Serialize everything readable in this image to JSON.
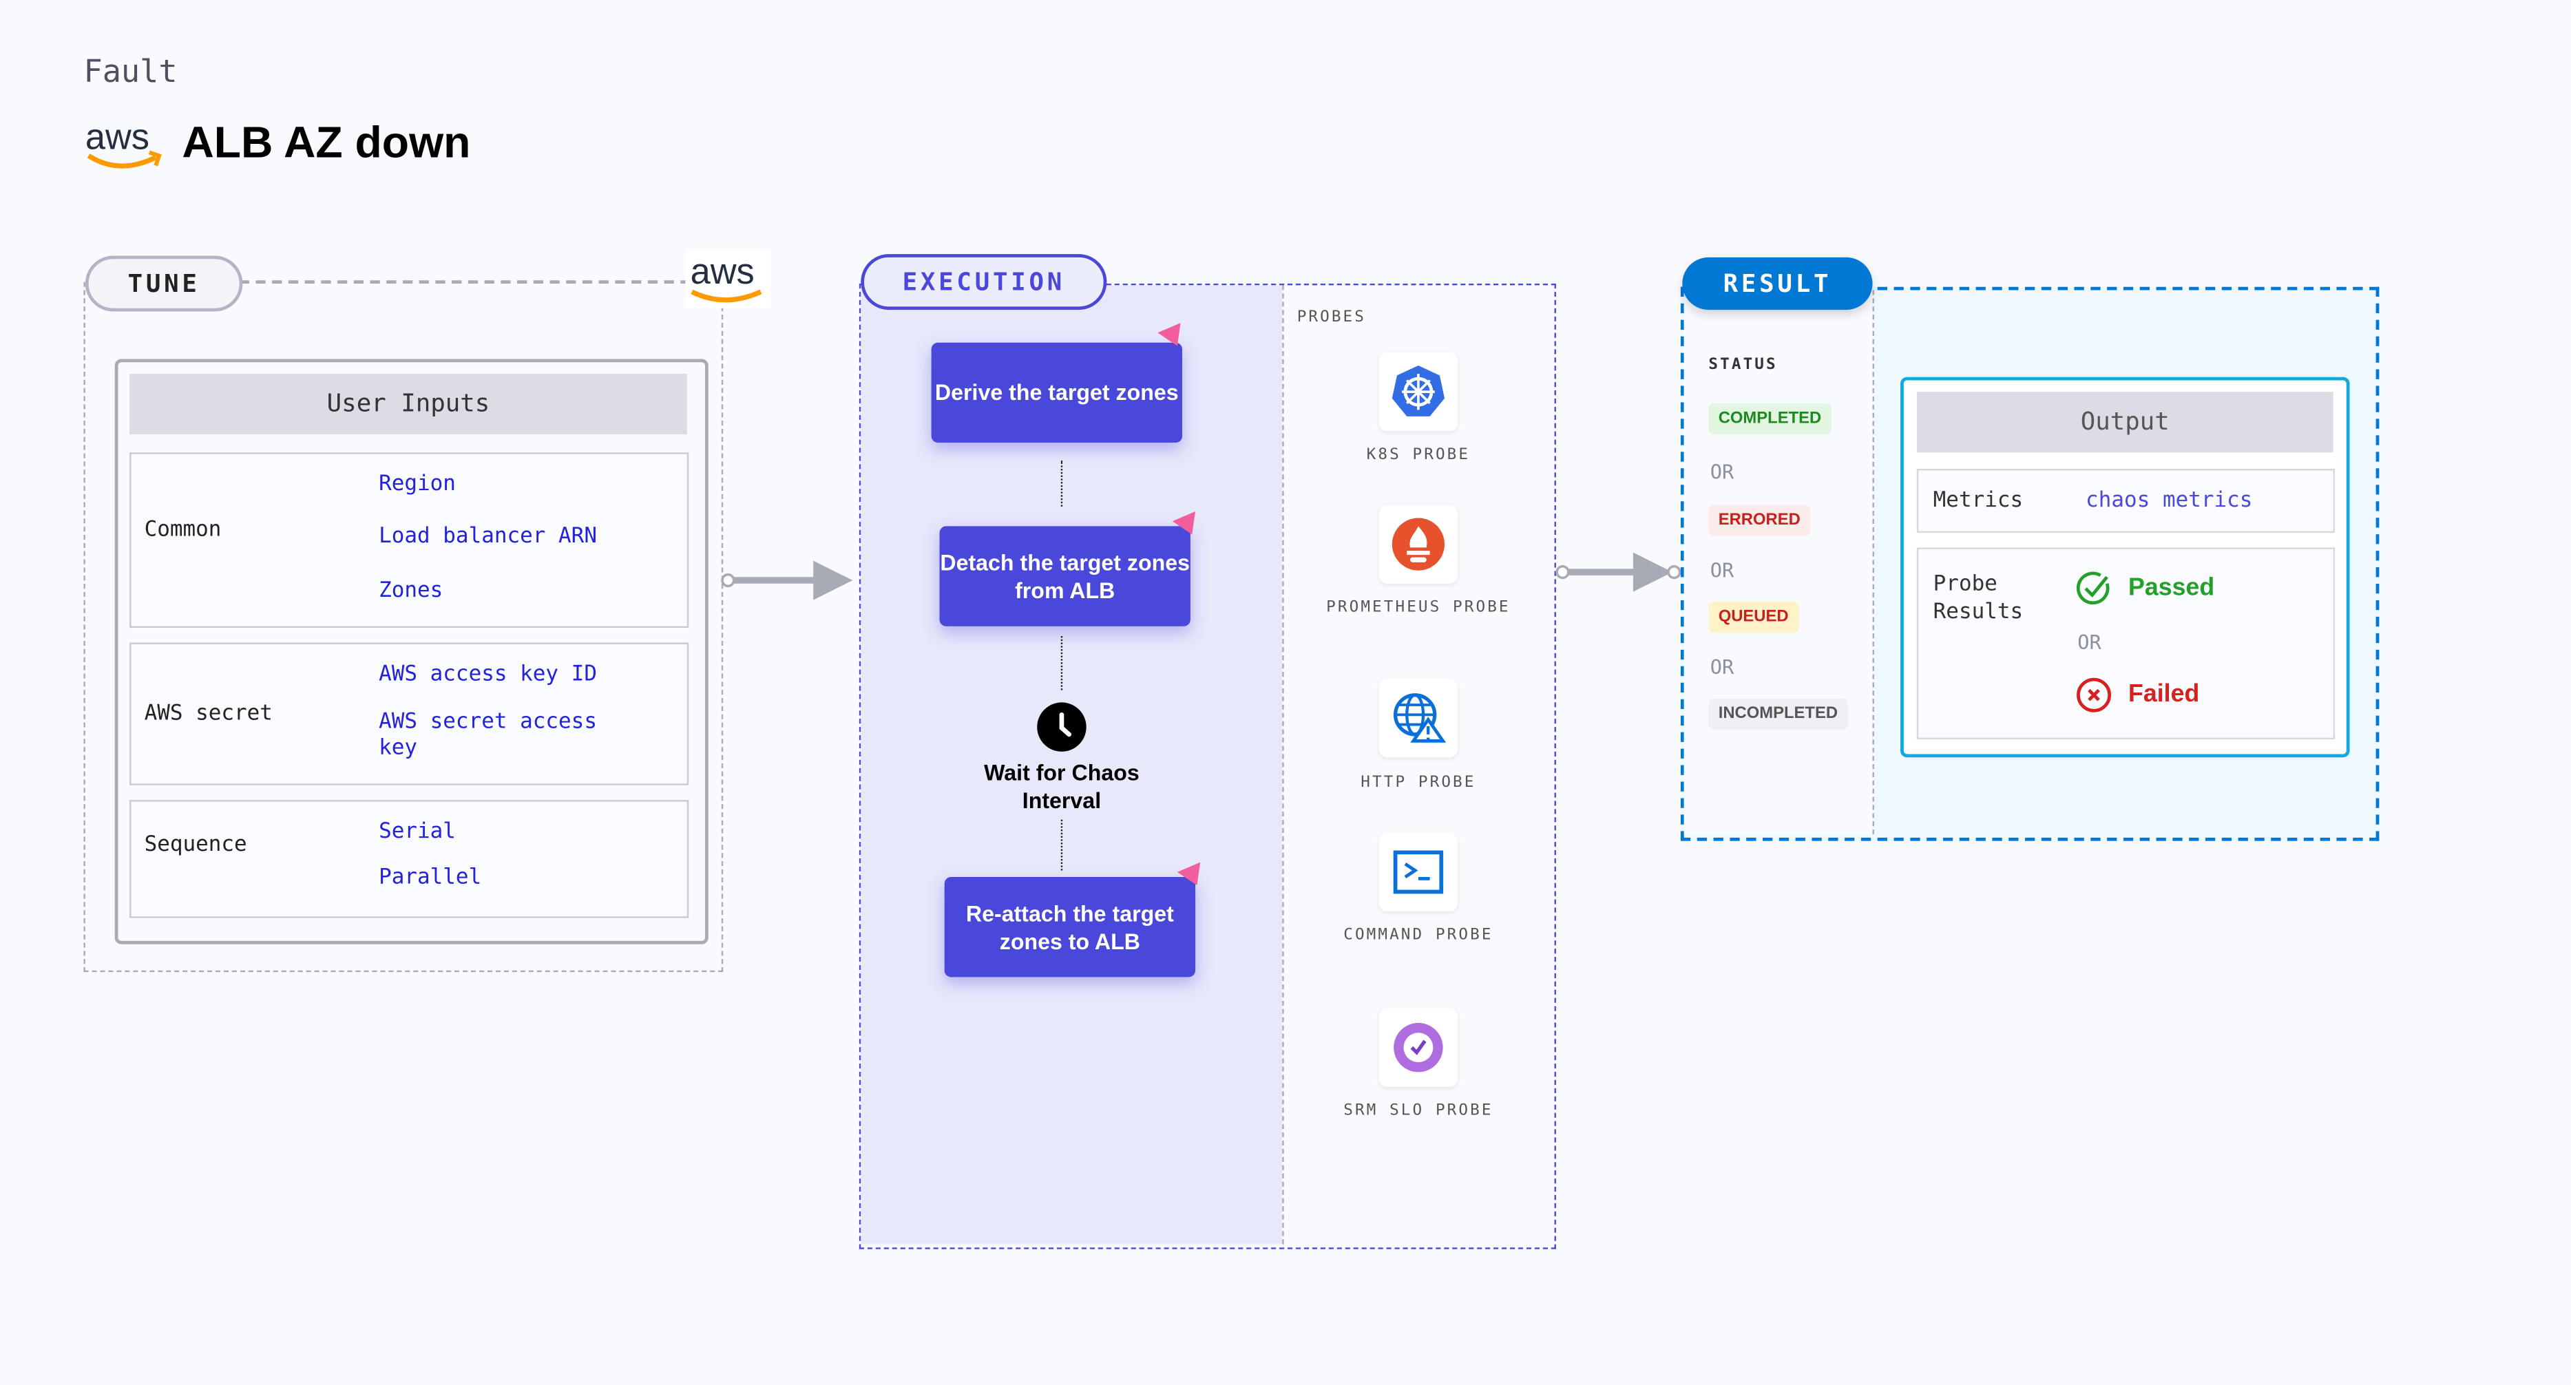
{
  "header": {
    "kind": "Fault",
    "title": "ALB AZ down",
    "logo": "aws"
  },
  "tune": {
    "label": "TUNE",
    "user_inputs_title": "User Inputs",
    "sections": [
      {
        "label": "Common",
        "values": [
          "Region",
          "Load balancer ARN",
          "Zones"
        ]
      },
      {
        "label": "AWS secret",
        "values": [
          "AWS access key ID",
          "AWS secret access key"
        ]
      },
      {
        "label": "Sequence",
        "values": [
          "Serial",
          "Parallel"
        ]
      }
    ]
  },
  "execution": {
    "label": "EXECUTION",
    "steps": [
      "Derive the target zones",
      "Detach the target zones from ALB",
      "Wait for Chaos Interval",
      "Re-attach the target zones to ALB"
    ],
    "probes_title": "PROBES",
    "probes": [
      {
        "label": "K8S PROBE",
        "icon": "kubernetes-icon"
      },
      {
        "label": "PROMETHEUS PROBE",
        "icon": "prometheus-icon"
      },
      {
        "label": "HTTP PROBE",
        "icon": "http-globe-icon"
      },
      {
        "label": "COMMAND PROBE",
        "icon": "terminal-icon"
      },
      {
        "label": "SRM SLO PROBE",
        "icon": "slo-icon"
      }
    ]
  },
  "result": {
    "label": "RESULT",
    "status_title": "STATUS",
    "statuses": [
      "COMPLETED",
      "ERRORED",
      "QUEUED",
      "INCOMPLETED"
    ],
    "or": "OR",
    "output_title": "Output",
    "metrics_label": "Metrics",
    "metrics_value": "chaos metrics",
    "probe_results_label": "Probe Results",
    "passed": "Passed",
    "failed": "Failed"
  },
  "colors": {
    "execution": "#4a48db",
    "result": "#0278d5",
    "passed": "#22a02a",
    "failed": "#d8201f"
  }
}
